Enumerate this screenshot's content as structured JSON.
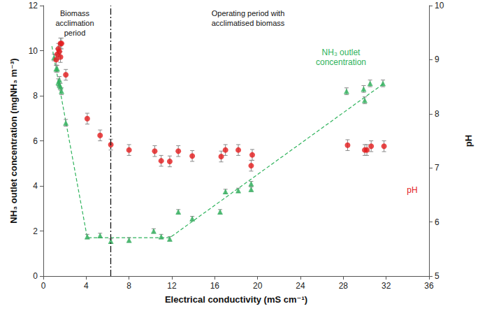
{
  "chart_data": {
    "type": "scatter",
    "x_label": "Electrical conductivity (mS cm⁻¹)",
    "y_label": "NH₃ outlet concentration (mgNH₃ m⁻³)",
    "y2_label": "pH",
    "xlim": [
      0,
      36
    ],
    "xticks": [
      0,
      4,
      8,
      12,
      16,
      20,
      24,
      28,
      32,
      36
    ],
    "ylim": [
      0,
      12
    ],
    "yticks": [
      0,
      2,
      4,
      6,
      8,
      10,
      12
    ],
    "y2lim": [
      5,
      10
    ],
    "y2ticks": [
      5,
      6,
      7,
      8,
      9,
      10
    ],
    "grid": false,
    "annotations": [
      {
        "text": "Biomass\nacclimation\nperiod"
      },
      {
        "text": "Operating period with\nacclimatised biomass"
      }
    ],
    "reference_line": {
      "x": 6.3,
      "line_style": "dashdot"
    },
    "series": [
      {
        "name": "NH₃ outlet\nconcentration",
        "color": "#2fb35c",
        "marker": "triangle",
        "axis": "y",
        "x": [
          1.0,
          1.2,
          1.3,
          1.4,
          1.5,
          1.5,
          1.6,
          1.7,
          2.1,
          4.1,
          5.3,
          6.3,
          8.0,
          10.3,
          11.0,
          11.8,
          12.6,
          13.9,
          16.5,
          17.0,
          18.2,
          19.4,
          19.4,
          28.3,
          29.9,
          30.0,
          30.5,
          31.7
        ],
        "values": [
          9.7,
          9.2,
          9.2,
          8.6,
          8.5,
          8.7,
          8.4,
          8.2,
          6.8,
          1.75,
          1.8,
          1.55,
          1.6,
          2.0,
          1.75,
          1.65,
          2.85,
          2.55,
          2.85,
          3.75,
          3.8,
          3.85,
          4.1,
          8.2,
          8.3,
          7.8,
          8.55,
          8.55
        ],
        "errors": [
          0.15,
          0.15,
          0.15,
          0.15,
          0.15,
          0.15,
          0.15,
          0.15,
          0.15,
          0.1,
          0.1,
          0.1,
          0.1,
          0.1,
          0.1,
          0.1,
          0.1,
          0.1,
          0.1,
          0.1,
          0.1,
          0.1,
          0.1,
          0.15,
          0.15,
          0.15,
          0.15,
          0.15
        ],
        "trend": {
          "x": [
            0.8,
            4.1,
            11.8,
            31.8
          ],
          "values": [
            10.2,
            1.7,
            1.7,
            8.55
          ],
          "line_style": "dashed"
        }
      },
      {
        "name": "pH",
        "color": "#e31a1c",
        "marker": "circle",
        "axis": "y2",
        "x": [
          1.2,
          1.3,
          1.4,
          1.5,
          1.6,
          1.6,
          1.7,
          2.1,
          4.1,
          5.3,
          6.3,
          8.0,
          10.4,
          11.0,
          11.8,
          12.6,
          13.9,
          16.6,
          17.0,
          18.2,
          19.5,
          19.4,
          28.4,
          30.0,
          30.2,
          30.6,
          31.8
        ],
        "values": [
          9.0,
          9.1,
          9.2,
          9.15,
          9.3,
          9.05,
          9.3,
          8.72,
          7.91,
          7.6,
          7.43,
          7.33,
          7.31,
          7.13,
          7.12,
          7.31,
          7.22,
          7.21,
          7.33,
          7.33,
          7.24,
          7.04,
          7.42,
          7.33,
          7.33,
          7.4,
          7.4
        ],
        "errors": [
          0.1,
          0.1,
          0.1,
          0.1,
          0.1,
          0.1,
          0.1,
          0.1,
          0.1,
          0.1,
          0.1,
          0.1,
          0.1,
          0.1,
          0.1,
          0.1,
          0.1,
          0.1,
          0.1,
          0.1,
          0.1,
          0.1,
          0.1,
          0.1,
          0.1,
          0.1,
          0.1
        ]
      }
    ]
  }
}
